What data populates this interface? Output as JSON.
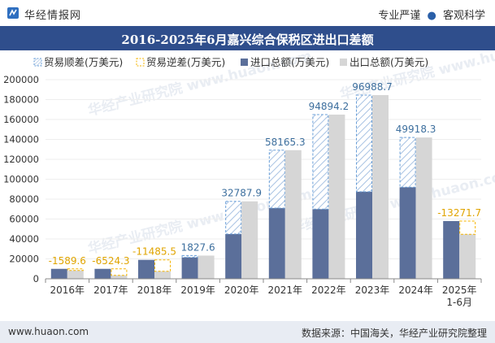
{
  "header": {
    "brand": "华经情报网",
    "tagline_left": "专业严谨",
    "tagline_dot": "●",
    "tagline_right": "客观科学"
  },
  "footer": {
    "website": "www.huaon.com",
    "source": "数据来源：中国海关，华经产业研究院整理"
  },
  "watermark": "华经产业研究院 www.huaon.com",
  "colors": {
    "title_bg": "#2f4e8c",
    "export_bar": "#5b6f9a",
    "import_bar": "#d6d6d6",
    "surplus": "#6a9fd8",
    "deficit": "#f5b400",
    "surplus_label": "#3d6f9e",
    "deficit_label": "#e0a400"
  },
  "chart_data": {
    "type": "bar",
    "title": "2016-2025年6月嘉兴综合保税区进出口差额",
    "categories": [
      "2016年",
      "2017年",
      "2018年",
      "2019年",
      "2020年",
      "2021年",
      "2022年",
      "2023年",
      "2024年",
      "2025年 1-6月"
    ],
    "ylim": [
      0,
      200000
    ],
    "yticks": [
      0,
      20000,
      40000,
      60000,
      80000,
      100000,
      120000,
      140000,
      160000,
      180000,
      200000
    ],
    "legend": [
      "贸易顺差(万美元)",
      "贸易逆差(万美元)",
      "进口总额(万美元)",
      "出口总额(万美元)"
    ],
    "legend_position": "top-left",
    "series": [
      {
        "name": "进口总额(万美元)",
        "values": [
          10000,
          10000,
          19000,
          21500,
          45000,
          71000,
          70000,
          87500,
          92000,
          58000
        ]
      },
      {
        "name": "出口总额(万美元)",
        "values": [
          8410.4,
          3475.7,
          7514.5,
          23327.6,
          77787.9,
          129165.3,
          164894.2,
          184488.7,
          141918.3,
          44728.3
        ]
      }
    ],
    "balance": [
      -1589.6,
      -6524.3,
      -11485.5,
      1827.6,
      32787.9,
      58165.3,
      94894.2,
      96988.7,
      49918.3,
      -13271.7
    ],
    "balance_labels": [
      "-1589.6",
      "-6524.3",
      "-11485.5",
      "1827.6",
      "32787.9",
      "58165.3",
      "94894.2",
      "96988.7",
      "49918.3",
      "-13271.7"
    ]
  }
}
